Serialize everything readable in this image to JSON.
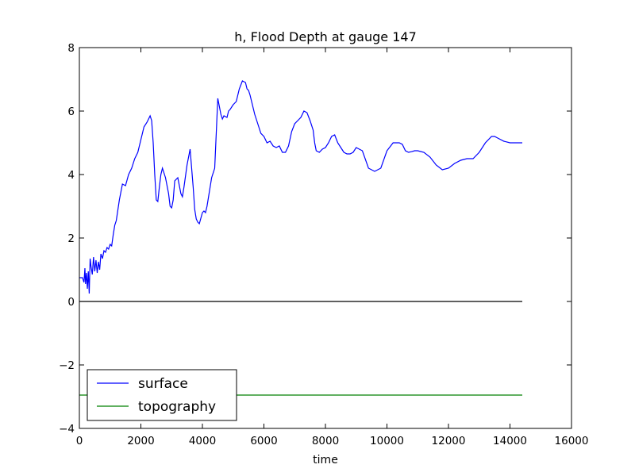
{
  "chart_data": {
    "type": "line",
    "title": "h, Flood Depth at gauge 147",
    "xlabel": "time",
    "ylabel": "",
    "xlim": [
      0,
      16000
    ],
    "ylim": [
      -4,
      8
    ],
    "xticks": [
      0,
      2000,
      4000,
      6000,
      8000,
      10000,
      12000,
      14000,
      16000
    ],
    "yticks": [
      -4,
      -2,
      0,
      2,
      4,
      6,
      8
    ],
    "xtick_labels": [
      "0",
      "2000",
      "4000",
      "6000",
      "8000",
      "10000",
      "12000",
      "14000",
      "16000"
    ],
    "ytick_labels": [
      "−4",
      "−2",
      "0",
      "2",
      "4",
      "6",
      "8"
    ],
    "grid": false,
    "legend_position": "lower-left",
    "series": [
      {
        "name": "surface",
        "color": "#0000ff",
        "x": [
          0,
          100,
          150,
          180,
          200,
          230,
          260,
          290,
          320,
          350,
          380,
          420,
          460,
          500,
          540,
          580,
          620,
          660,
          700,
          750,
          800,
          850,
          900,
          950,
          1000,
          1050,
          1100,
          1150,
          1200,
          1300,
          1400,
          1500,
          1600,
          1700,
          1800,
          1900,
          2000,
          2100,
          2200,
          2300,
          2350,
          2400,
          2450,
          2500,
          2550,
          2600,
          2650,
          2700,
          2800,
          2900,
          2950,
          3000,
          3050,
          3100,
          3200,
          3300,
          3350,
          3400,
          3500,
          3600,
          3700,
          3750,
          3800,
          3850,
          3900,
          4000,
          4050,
          4100,
          4150,
          4200,
          4300,
          4400,
          4500,
          4600,
          4650,
          4700,
          4800,
          4850,
          4900,
          5000,
          5100,
          5200,
          5300,
          5400,
          5450,
          5500,
          5550,
          5600,
          5650,
          5700,
          5800,
          5900,
          6000,
          6100,
          6200,
          6300,
          6400,
          6500,
          6600,
          6700,
          6800,
          6900,
          7000,
          7100,
          7200,
          7300,
          7400,
          7500,
          7600,
          7650,
          7700,
          7800,
          7900,
          8000,
          8100,
          8200,
          8300,
          8400,
          8500,
          8600,
          8700,
          8800,
          8900,
          9000,
          9200,
          9400,
          9600,
          9800,
          10000,
          10200,
          10400,
          10500,
          10600,
          10700,
          10800,
          10900,
          11000,
          11200,
          11400,
          11600,
          11800,
          12000,
          12200,
          12400,
          12600,
          12800,
          13000,
          13200,
          13400,
          13500,
          13600,
          13800,
          14000,
          14200,
          14400
        ],
        "values": [
          0.75,
          0.75,
          0.6,
          1.05,
          0.55,
          0.9,
          0.4,
          0.95,
          0.25,
          1.35,
          1.1,
          0.85,
          1.4,
          0.95,
          1.3,
          0.9,
          1.25,
          1.0,
          1.5,
          1.35,
          1.6,
          1.55,
          1.7,
          1.65,
          1.8,
          1.75,
          2.1,
          2.4,
          2.55,
          3.2,
          3.7,
          3.65,
          4.0,
          4.2,
          4.5,
          4.7,
          5.1,
          5.5,
          5.65,
          5.85,
          5.7,
          5.0,
          4.0,
          3.2,
          3.15,
          3.6,
          4.0,
          4.2,
          3.9,
          3.4,
          3.0,
          2.95,
          3.2,
          3.8,
          3.9,
          3.4,
          3.3,
          3.6,
          4.3,
          4.8,
          3.6,
          2.9,
          2.6,
          2.5,
          2.45,
          2.8,
          2.85,
          2.8,
          3.0,
          3.3,
          3.9,
          4.2,
          6.4,
          5.9,
          5.75,
          5.85,
          5.8,
          6.0,
          6.05,
          6.2,
          6.3,
          6.7,
          6.95,
          6.9,
          6.7,
          6.65,
          6.5,
          6.3,
          6.1,
          5.9,
          5.6,
          5.3,
          5.2,
          5.0,
          5.05,
          4.9,
          4.85,
          4.9,
          4.7,
          4.7,
          4.9,
          5.35,
          5.6,
          5.7,
          5.8,
          6.0,
          5.95,
          5.7,
          5.4,
          5.0,
          4.75,
          4.7,
          4.8,
          4.85,
          5.0,
          5.2,
          5.25,
          5.0,
          4.85,
          4.7,
          4.65,
          4.65,
          4.7,
          4.85,
          4.75,
          4.2,
          4.1,
          4.2,
          4.75,
          5.0,
          5.0,
          4.95,
          4.75,
          4.7,
          4.72,
          4.75,
          4.75,
          4.7,
          4.55,
          4.3,
          4.15,
          4.2,
          4.35,
          4.45,
          4.5,
          4.5,
          4.7,
          5.0,
          5.2,
          5.2,
          5.15,
          5.05,
          5.0,
          5.0,
          5.0
        ]
      },
      {
        "name": "topography",
        "color": "#008000",
        "x": [
          0,
          14400
        ],
        "values": [
          -2.95,
          -2.95
        ]
      }
    ],
    "reference_line": {
      "color": "#000000",
      "x": [
        0,
        14400
      ],
      "values": [
        0,
        0
      ]
    }
  }
}
